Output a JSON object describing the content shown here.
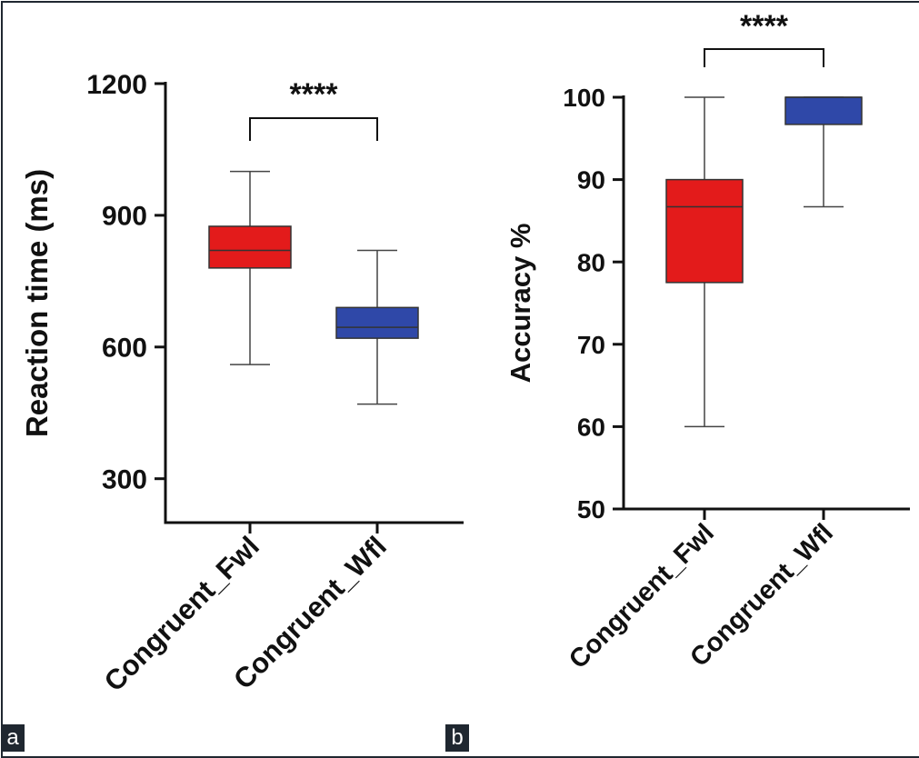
{
  "figure": {
    "frame_color": "#1f2730",
    "panels": [
      {
        "tag": "a",
        "chart_data": {
          "type": "box",
          "title": "",
          "xlabel": "",
          "ylabel": "Reaction time (ms)",
          "ylim": [
            200,
            1200
          ],
          "yticks": [
            "300",
            "600",
            "900",
            "1200"
          ],
          "categories": [
            "Congruent_Fwl",
            "Congruent_Wfl"
          ],
          "boxes": [
            {
              "category": "Congruent_Fwl",
              "min": 560,
              "q1": 780,
              "median": 820,
              "q3": 875,
              "max": 1000,
              "color": "#e31b1b"
            },
            {
              "category": "Congruent_Wfl",
              "min": 470,
              "q1": 620,
              "median": 645,
              "q3": 690,
              "max": 820,
              "color": "#2f48a8"
            }
          ],
          "significance": {
            "label": "****",
            "between": [
              "Congruent_Fwl",
              "Congruent_Wfl"
            ]
          },
          "grid": false
        }
      },
      {
        "tag": "b",
        "chart_data": {
          "type": "box",
          "title": "",
          "xlabel": "",
          "ylabel": "Accuracy %",
          "ylim": [
            50,
            100
          ],
          "yticks": [
            "50",
            "60",
            "70",
            "80",
            "90",
            "100"
          ],
          "categories": [
            "Congruent_Fwl",
            "Congruent_Wfl"
          ],
          "boxes": [
            {
              "category": "Congruent_Fwl",
              "min": 60,
              "q1": 77.5,
              "median": 86.7,
              "q3": 90,
              "max": 100,
              "color": "#e31b1b"
            },
            {
              "category": "Congruent_Wfl",
              "min": 86.7,
              "q1": 96.7,
              "median": 100,
              "q3": 100,
              "max": 100,
              "color": "#2f48a8"
            }
          ],
          "significance": {
            "label": "****",
            "between": [
              "Congruent_Fwl",
              "Congruent_Wfl"
            ]
          },
          "grid": false
        }
      }
    ]
  }
}
